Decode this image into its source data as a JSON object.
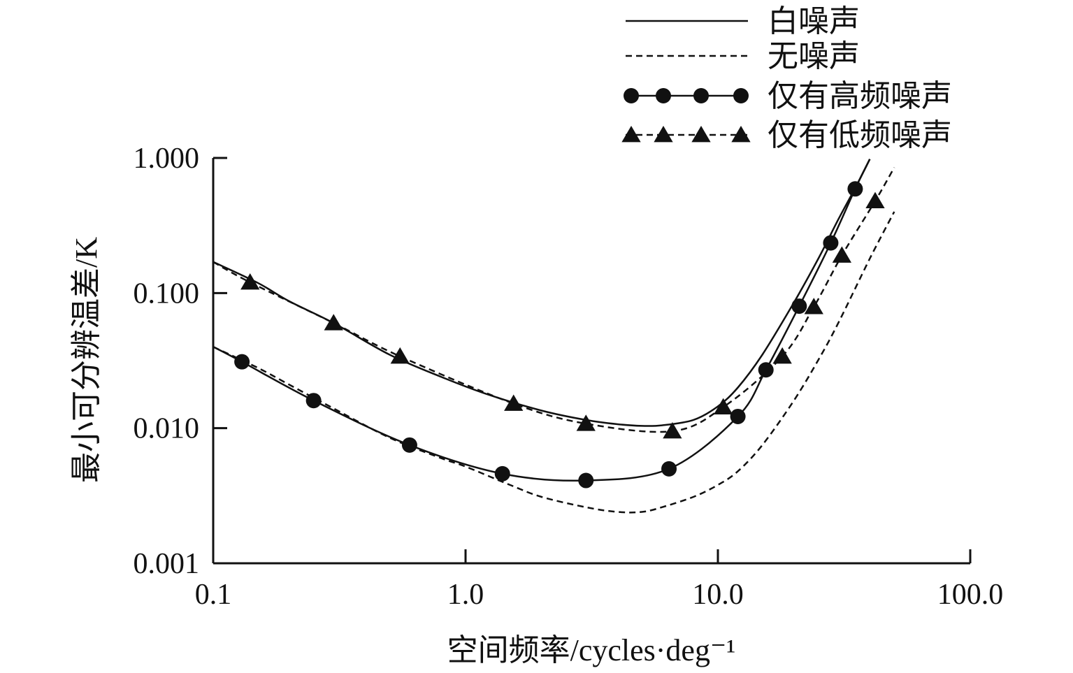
{
  "chart_data": {
    "type": "line",
    "title": "",
    "xlabel": "空间频率/cycles·deg⁻¹",
    "ylabel": "最小可分辨温差/K",
    "xscale": "log",
    "yscale": "log",
    "xlim": [
      0.1,
      100
    ],
    "ylim": [
      0.001,
      1
    ],
    "xticks": [
      {
        "value": 0.1,
        "label": "0.1"
      },
      {
        "value": 1,
        "label": "1.0"
      },
      {
        "value": 10,
        "label": "10.0"
      },
      {
        "value": 100,
        "label": "100.0"
      }
    ],
    "yticks": [
      {
        "value": 0.001,
        "label": "0.001"
      },
      {
        "value": 0.01,
        "label": "0.010"
      },
      {
        "value": 0.1,
        "label": "0.100"
      },
      {
        "value": 1,
        "label": "1.000"
      }
    ],
    "legend_position": "top-right",
    "series": [
      {
        "name": "白噪声",
        "line": "solid",
        "marker": "none",
        "x": [
          0.1,
          0.15,
          0.2,
          0.3,
          0.5,
          0.8,
          1.2,
          2,
          3,
          4,
          5,
          6,
          8,
          10,
          12,
          15,
          20,
          25,
          30,
          35,
          40
        ],
        "y": [
          0.17,
          0.119,
          0.087,
          0.06,
          0.035,
          0.024,
          0.018,
          0.0135,
          0.0115,
          0.0107,
          0.0104,
          0.0105,
          0.0115,
          0.0145,
          0.02,
          0.035,
          0.085,
          0.18,
          0.35,
          0.6,
          0.98
        ]
      },
      {
        "name": "无噪声",
        "line": "dashed",
        "marker": "none",
        "x": [
          0.1,
          0.15,
          0.2,
          0.3,
          0.5,
          0.8,
          1.0,
          1.5,
          2,
          3,
          4,
          5,
          6,
          8,
          10,
          12,
          15,
          20,
          25,
          30,
          40,
          50
        ],
        "y": [
          0.04,
          0.028,
          0.021,
          0.014,
          0.0085,
          0.006,
          0.0052,
          0.0038,
          0.0031,
          0.0026,
          0.0024,
          0.0024,
          0.0026,
          0.0031,
          0.0038,
          0.0048,
          0.0075,
          0.016,
          0.032,
          0.06,
          0.18,
          0.4
        ]
      },
      {
        "name": "仅有高频噪声",
        "line": "solid",
        "marker": "circle",
        "x": [
          0.1,
          0.13,
          0.25,
          0.6,
          1.4,
          3,
          6.4,
          12,
          15.5,
          21,
          28,
          35,
          40
        ],
        "y": [
          0.04,
          0.031,
          0.016,
          0.0075,
          0.0046,
          0.0041,
          0.005,
          0.0122,
          0.027,
          0.08,
          0.235,
          0.59,
          0.98
        ],
        "markers_x": [
          0.13,
          0.25,
          0.6,
          1.4,
          3,
          6.4,
          12,
          15.5,
          21,
          28,
          35
        ],
        "markers_y": [
          0.031,
          0.016,
          0.0075,
          0.0046,
          0.0041,
          0.005,
          0.0122,
          0.027,
          0.08,
          0.235,
          0.59
        ]
      },
      {
        "name": "仅有低频噪声",
        "line": "dashed",
        "marker": "triangle",
        "x": [
          0.1,
          0.14,
          0.3,
          0.55,
          1.55,
          3,
          6.6,
          10.5,
          18,
          24,
          31,
          42,
          50
        ],
        "y": [
          0.17,
          0.12,
          0.06,
          0.034,
          0.0152,
          0.0108,
          0.0095,
          0.0143,
          0.034,
          0.079,
          0.19,
          0.48,
          0.85
        ],
        "markers_x": [
          0.14,
          0.3,
          0.55,
          1.55,
          3,
          6.6,
          10.5,
          18,
          24,
          31,
          42
        ],
        "markers_y": [
          0.12,
          0.06,
          0.034,
          0.0152,
          0.0108,
          0.0095,
          0.0143,
          0.034,
          0.079,
          0.19,
          0.48
        ]
      }
    ]
  }
}
